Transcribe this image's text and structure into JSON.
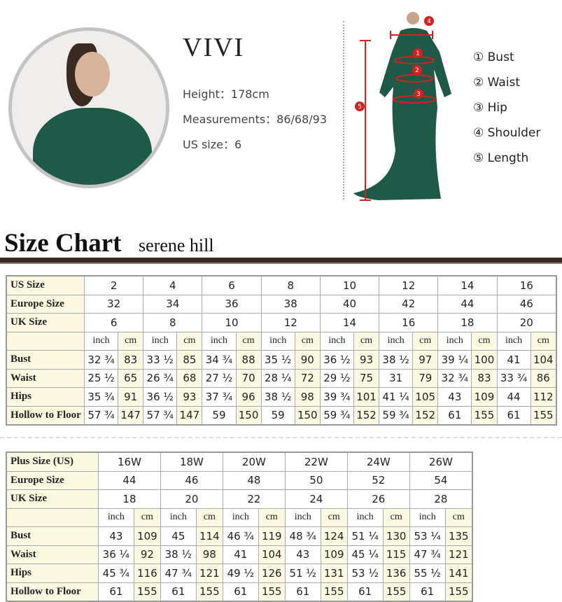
{
  "model": {
    "name": "VIVI",
    "height": "Height：178cm",
    "measurements": "Measurements：86/68/93",
    "us_size": "US size：6"
  },
  "figure_markers": [
    "1",
    "2",
    "3",
    "4",
    "5"
  ],
  "legend": [
    "① Bust",
    "② Waist",
    "③ Hip",
    "④ Shoulder",
    "⑤ Length"
  ],
  "size_chart": {
    "title": "Size Chart",
    "brand": "serene hill"
  },
  "colors": {
    "marker": "#d42020",
    "dress": "#1f5a48",
    "rule": "#3a2a22",
    "cell_highlight": "#fbf9e2"
  },
  "table1": {
    "header_rows": [
      {
        "label": "US Size",
        "values": [
          "2",
          "4",
          "6",
          "8",
          "10",
          "12",
          "14",
          "16"
        ]
      },
      {
        "label": "Europe Size",
        "values": [
          "32",
          "34",
          "36",
          "38",
          "40",
          "42",
          "44",
          "46"
        ]
      },
      {
        "label": "UK Size",
        "values": [
          "6",
          "8",
          "10",
          "12",
          "14",
          "16",
          "18",
          "20"
        ]
      }
    ],
    "units": [
      "inch",
      "cm"
    ],
    "rows": [
      {
        "label": "Bust",
        "values": [
          "32 ¾",
          "83",
          "33 ½",
          "85",
          "34 ¾",
          "88",
          "35 ½",
          "90",
          "36 ½",
          "93",
          "38 ½",
          "97",
          "39 ¼",
          "100",
          "41",
          "104"
        ]
      },
      {
        "label": "Waist",
        "values": [
          "25 ½",
          "65",
          "26 ¾",
          "68",
          "27 ½",
          "70",
          "28 ¼",
          "72",
          "29 ½",
          "75",
          "31",
          "79",
          "32 ¾",
          "83",
          "33 ¾",
          "86"
        ]
      },
      {
        "label": "Hips",
        "values": [
          "35 ¾",
          "91",
          "36 ½",
          "93",
          "37 ¾",
          "96",
          "38 ½",
          "98",
          "39 ¾",
          "101",
          "41 ¼",
          "105",
          "43",
          "109",
          "44",
          "112"
        ]
      },
      {
        "label": "Hollow to Floor",
        "values": [
          "57 ¾",
          "147",
          "57 ¾",
          "147",
          "59",
          "150",
          "59",
          "150",
          "59 ¾",
          "152",
          "59 ¾",
          "152",
          "61",
          "155",
          "61",
          "155"
        ]
      }
    ]
  },
  "table2": {
    "header_rows": [
      {
        "label": "Plus Size (US)",
        "values": [
          "16W",
          "18W",
          "20W",
          "22W",
          "24W",
          "26W"
        ]
      },
      {
        "label": "Europe Size",
        "values": [
          "44",
          "46",
          "48",
          "50",
          "52",
          "54"
        ]
      },
      {
        "label": "UK Size",
        "values": [
          "18",
          "20",
          "22",
          "24",
          "26",
          "28"
        ]
      }
    ],
    "units": [
      "inch",
      "cm"
    ],
    "rows": [
      {
        "label": "Bust",
        "values": [
          "43",
          "109",
          "45",
          "114",
          "46 ¾",
          "119",
          "48 ¾",
          "124",
          "51 ¼",
          "130",
          "53 ¼",
          "135"
        ]
      },
      {
        "label": "Waist",
        "values": [
          "36 ¼",
          "92",
          "38 ½",
          "98",
          "41",
          "104",
          "43",
          "109",
          "45 ¼",
          "115",
          "47 ¾",
          "121"
        ]
      },
      {
        "label": "Hips",
        "values": [
          "45 ¾",
          "116",
          "47 ¾",
          "121",
          "49 ½",
          "126",
          "51 ½",
          "131",
          "53 ½",
          "136",
          "55 ½",
          "141"
        ]
      },
      {
        "label": "Hollow to Floor",
        "values": [
          "61",
          "155",
          "61",
          "155",
          "61",
          "155",
          "61",
          "155",
          "61",
          "155",
          "61",
          "155"
        ]
      }
    ]
  }
}
